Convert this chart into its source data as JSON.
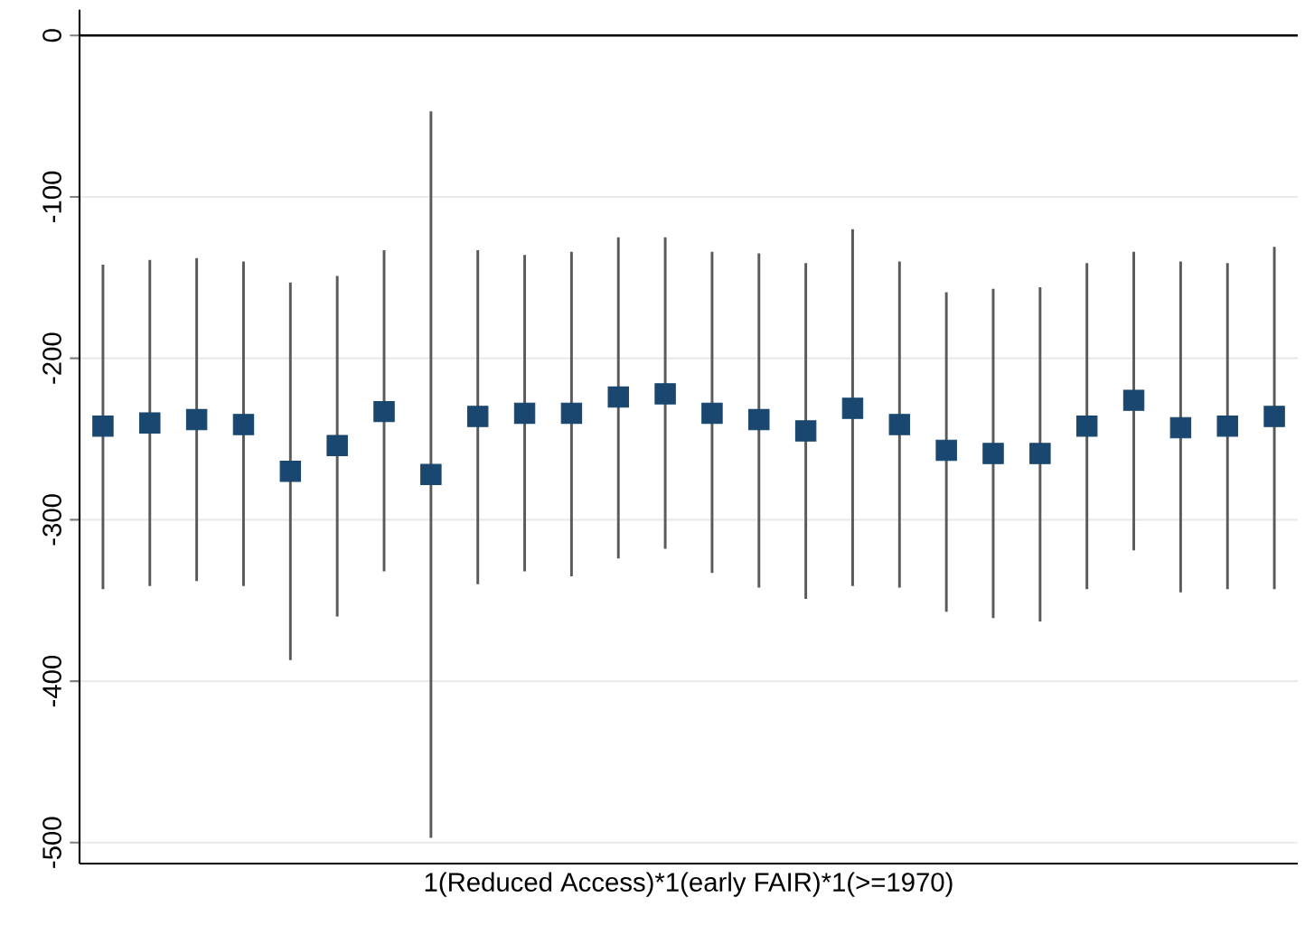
{
  "chart_data": {
    "type": "scatter",
    "xlabel": "1(Reduced Access)*1(early FAIR)*1(>=1970)",
    "categories": [
      null,
      null,
      null,
      null,
      null,
      null,
      null,
      null,
      null,
      null,
      null,
      null,
      null,
      null,
      null,
      null,
      null,
      null,
      null,
      null,
      null,
      null,
      null,
      null,
      null,
      null
    ],
    "series": [
      {
        "color": "#1a476f",
        "values": [
          -242,
          -240,
          -238,
          -241,
          -270,
          -254,
          -233,
          -272,
          -236,
          -234,
          -234,
          -224,
          -222,
          -234,
          -238,
          -245,
          -231,
          -241,
          -257,
          -259,
          -259,
          -242,
          -226,
          -243,
          -242,
          -236
        ],
        "errors": [
          [
            -343,
            -142
          ],
          [
            -341,
            -139
          ],
          [
            -338,
            -138
          ],
          [
            -341,
            -140
          ],
          [
            -387,
            -153
          ],
          [
            -360,
            -149
          ],
          [
            -332,
            -133
          ],
          [
            -497,
            -47
          ],
          [
            -340,
            -133
          ],
          [
            -332,
            -136
          ],
          [
            -335,
            -134
          ],
          [
            -324,
            -125
          ],
          [
            -318,
            -125
          ],
          [
            -333,
            -134
          ],
          [
            -342,
            -135
          ],
          [
            -349,
            -141
          ],
          [
            -341,
            -120
          ],
          [
            -342,
            -140
          ],
          [
            -357,
            -159
          ],
          [
            -361,
            -157
          ],
          [
            -363,
            -156
          ],
          [
            -343,
            -141
          ],
          [
            -319,
            -134
          ],
          [
            -345,
            -140
          ],
          [
            -343,
            -141
          ],
          [
            -343,
            -131
          ]
        ]
      }
    ],
    "marker": "square",
    "ylim": [
      -513,
      16
    ],
    "yticks": [
      0,
      -100,
      -200,
      -300,
      -400,
      -500
    ],
    "grid": "y",
    "ref_lines": [
      {
        "axis": "y",
        "value": 0,
        "color": "#000000"
      }
    ]
  }
}
